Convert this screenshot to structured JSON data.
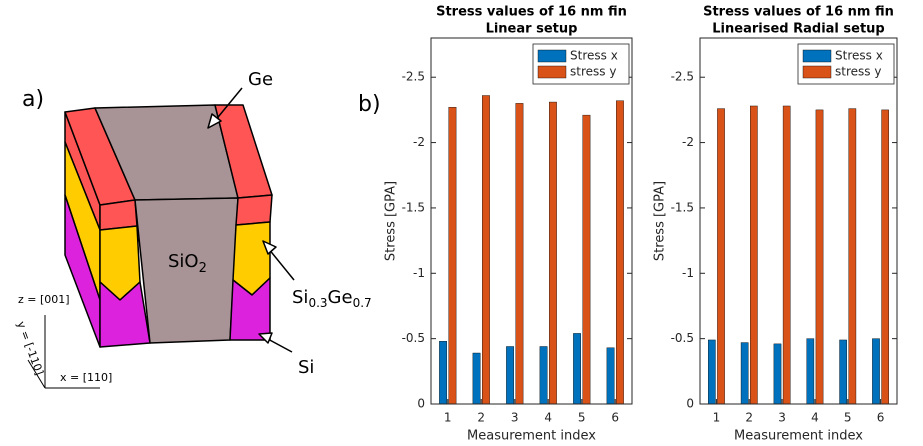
{
  "diagram": {
    "panel_label": "a)",
    "ge": "Ge",
    "sio2_main": "SiO",
    "sio2_sub": "2",
    "sige_si": "Si",
    "sige_si_sub": "0.3",
    "sige_ge": "Ge",
    "sige_ge_sub": "0.7",
    "si": "Si",
    "z_axis": "z = [001]",
    "y_axis": "y = [-110]",
    "x_axis": "x = [110]"
  },
  "panel_label": "b)",
  "chart_data": [
    {
      "type": "bar",
      "title": "Stress values of 16 nm fin",
      "subtitle": "Linear setup",
      "x_label": "Measurement index",
      "y_label": "Stress [GPA]",
      "categories": [
        "1",
        "2",
        "3",
        "4",
        "5",
        "6"
      ],
      "series": [
        {
          "name": "Stress x",
          "color": "#0072bd",
          "values": [
            -0.48,
            -0.39,
            -0.44,
            -0.44,
            -0.54,
            -0.43
          ]
        },
        {
          "name": "stress y",
          "color": "#d95319",
          "values": [
            -2.27,
            -2.36,
            -2.3,
            -2.31,
            -2.21,
            -2.32
          ]
        }
      ],
      "ylim": [
        0,
        -2.8
      ],
      "yticks": [
        0,
        -0.5,
        -1,
        -1.5,
        -2,
        -2.5
      ],
      "legend": "top-right"
    },
    {
      "type": "bar",
      "title": "Stress values of 16 nm fin",
      "subtitle": "Linearised Radial setup",
      "x_label": "Measurement index",
      "y_label": "Stress [GPA]",
      "categories": [
        "1",
        "2",
        "3",
        "4",
        "5",
        "6"
      ],
      "series": [
        {
          "name": "Stress x",
          "color": "#0072bd",
          "values": [
            -0.49,
            -0.47,
            -0.46,
            -0.5,
            -0.49,
            -0.5
          ]
        },
        {
          "name": "stress y",
          "color": "#d95319",
          "values": [
            -2.26,
            -2.28,
            -2.28,
            -2.25,
            -2.26,
            -2.25
          ]
        }
      ],
      "ylim": [
        0,
        -2.8
      ],
      "yticks": [
        0,
        -0.5,
        -1,
        -1.5,
        -2,
        -2.5
      ],
      "legend": "top-right"
    }
  ]
}
